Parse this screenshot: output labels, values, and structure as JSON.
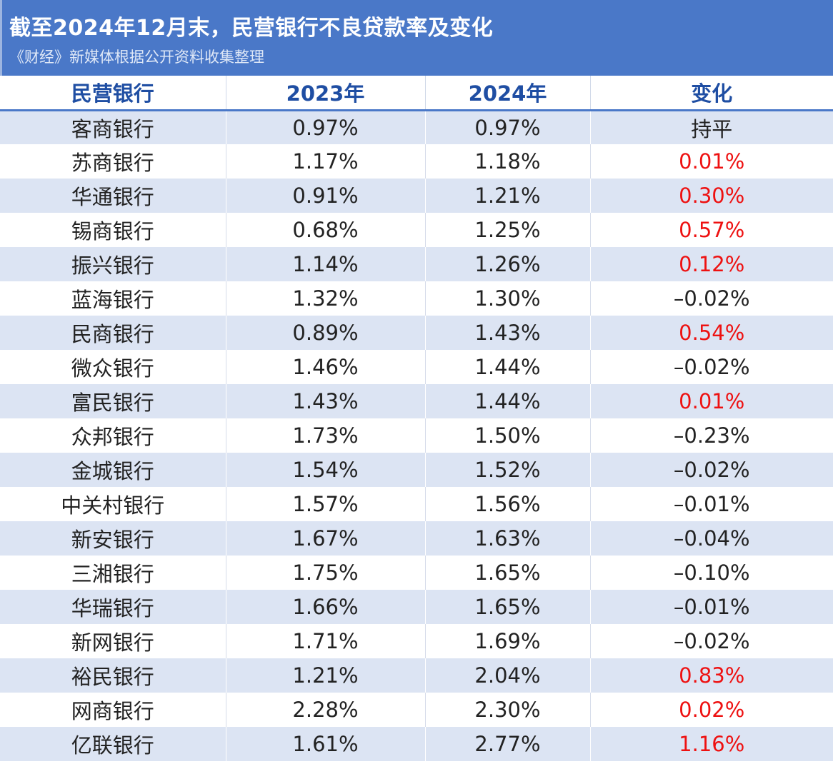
{
  "header": {
    "title": "截至2024年12月末，民营银行不良贷款率及变化",
    "subtitle": "《财经》新媒体根据公开资料收集整理"
  },
  "table": {
    "columns": [
      "民营银行",
      "2023年",
      "2024年",
      "变化"
    ],
    "colors": {
      "increase": "#ee1111",
      "other": "#222222",
      "header_text": "#1f4ea3",
      "banner": "#4a78c8",
      "row_band": "#dce4f3"
    },
    "rows": [
      {
        "bank": "客商银行",
        "y2023": "0.97%",
        "y2024": "0.97%",
        "change": "持平",
        "trend": "flat"
      },
      {
        "bank": "苏商银行",
        "y2023": "1.17%",
        "y2024": "1.18%",
        "change": "0.01%",
        "trend": "up"
      },
      {
        "bank": "华通银行",
        "y2023": "0.91%",
        "y2024": "1.21%",
        "change": "0.30%",
        "trend": "up"
      },
      {
        "bank": "锡商银行",
        "y2023": "0.68%",
        "y2024": "1.25%",
        "change": "0.57%",
        "trend": "up"
      },
      {
        "bank": "振兴银行",
        "y2023": "1.14%",
        "y2024": "1.26%",
        "change": "0.12%",
        "trend": "up"
      },
      {
        "bank": "蓝海银行",
        "y2023": "1.32%",
        "y2024": "1.30%",
        "change": "–0.02%",
        "trend": "down"
      },
      {
        "bank": "民商银行",
        "y2023": "0.89%",
        "y2024": "1.43%",
        "change": "0.54%",
        "trend": "up"
      },
      {
        "bank": "微众银行",
        "y2023": "1.46%",
        "y2024": "1.44%",
        "change": "–0.02%",
        "trend": "down"
      },
      {
        "bank": "富民银行",
        "y2023": "1.43%",
        "y2024": "1.44%",
        "change": "0.01%",
        "trend": "up"
      },
      {
        "bank": "众邦银行",
        "y2023": "1.73%",
        "y2024": "1.50%",
        "change": "–0.23%",
        "trend": "down"
      },
      {
        "bank": "金城银行",
        "y2023": "1.54%",
        "y2024": "1.52%",
        "change": "–0.02%",
        "trend": "down"
      },
      {
        "bank": "中关村银行",
        "y2023": "1.57%",
        "y2024": "1.56%",
        "change": "–0.01%",
        "trend": "down"
      },
      {
        "bank": "新安银行",
        "y2023": "1.67%",
        "y2024": "1.63%",
        "change": "–0.04%",
        "trend": "down"
      },
      {
        "bank": "三湘银行",
        "y2023": "1.75%",
        "y2024": "1.65%",
        "change": "–0.10%",
        "trend": "down"
      },
      {
        "bank": "华瑞银行",
        "y2023": "1.66%",
        "y2024": "1.65%",
        "change": "–0.01%",
        "trend": "down"
      },
      {
        "bank": "新网银行",
        "y2023": "1.71%",
        "y2024": "1.69%",
        "change": "–0.02%",
        "trend": "down"
      },
      {
        "bank": "裕民银行",
        "y2023": "1.21%",
        "y2024": "2.04%",
        "change": "0.83%",
        "trend": "up"
      },
      {
        "bank": "网商银行",
        "y2023": "2.28%",
        "y2024": "2.30%",
        "change": "0.02%",
        "trend": "up"
      },
      {
        "bank": "亿联银行",
        "y2023": "1.61%",
        "y2024": "2.77%",
        "change": "1.16%",
        "trend": "up"
      }
    ]
  }
}
